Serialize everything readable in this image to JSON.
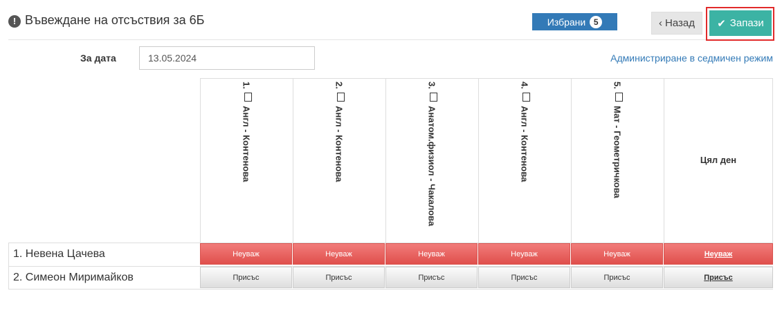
{
  "header": {
    "title": "Въвеждане на отсъствия за 6Б",
    "selected_label": "Избрани",
    "selected_count": "5",
    "back_label": "Назад",
    "save_label": "Запази"
  },
  "form": {
    "date_label": "За дата",
    "date_value": "13.05.2024",
    "admin_link": "Администриране в седмичен режим"
  },
  "table": {
    "columns": [
      {
        "num": "1.",
        "label": "Англ - Контенова"
      },
      {
        "num": "2.",
        "label": "Англ - Контенова"
      },
      {
        "num": "3.",
        "label": "Анатом.физиол - Чакалова"
      },
      {
        "num": "4.",
        "label": "Англ - Контенова"
      },
      {
        "num": "5.",
        "label": "Мат - Геометричкова"
      }
    ],
    "fullday_label": "Цял ден",
    "rows": [
      {
        "name": "1. Невена Цачева",
        "cells": [
          "Неуваж",
          "Неуваж",
          "Неуваж",
          "Неуваж",
          "Неуваж"
        ],
        "fullday": "Неуваж",
        "status": "absent"
      },
      {
        "name": "2. Симеон Миримайков",
        "cells": [
          "Присъс",
          "Присъс",
          "Присъс",
          "Присъс",
          "Присъс"
        ],
        "fullday": "Присъс",
        "status": "present"
      }
    ]
  },
  "colors": {
    "primary": "#337ab7",
    "save": "#3cb3a4",
    "absent": "#e04f4c",
    "highlight": "#e12a2a"
  }
}
